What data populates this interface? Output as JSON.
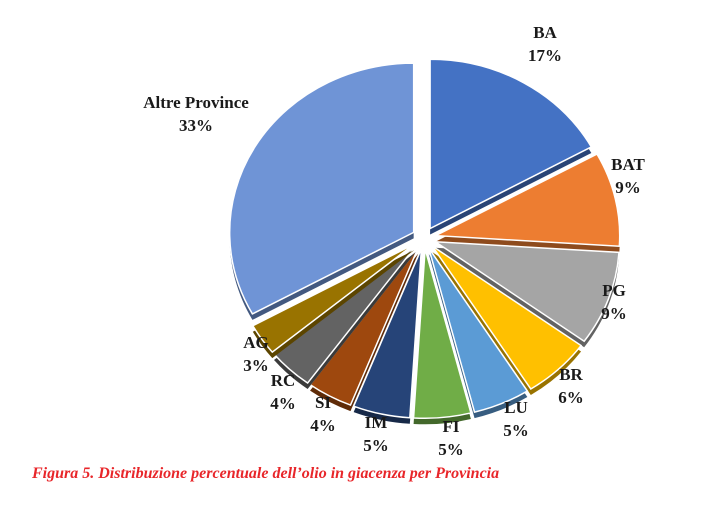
{
  "chart_data": {
    "type": "pie",
    "title": "",
    "categories": [
      "BA",
      "BAT",
      "PG",
      "BR",
      "LU",
      "FI",
      "IM",
      "SI",
      "RC",
      "AG",
      "Altre Province"
    ],
    "values": [
      17,
      9,
      9,
      6,
      5,
      5,
      5,
      4,
      4,
      3,
      33
    ],
    "value_labels": [
      "17%",
      "9%",
      "9%",
      "6%",
      "5%",
      "5%",
      "5%",
      "4%",
      "4%",
      "3%",
      "33%"
    ],
    "colors": [
      "#4472c4",
      "#ed7d31",
      "#a5a5a5",
      "#ffc000",
      "#5b9bd5",
      "#70ad47",
      "#264478",
      "#9e480e",
      "#636363",
      "#997300",
      "#6f94d6"
    ],
    "exploded": true,
    "legend": "none"
  },
  "caption": "Figura 5. Distribuzione percentuale dell’olio in giacenza per Provincia"
}
